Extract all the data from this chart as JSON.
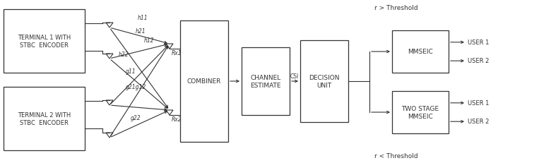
{
  "bg_color": "#ffffff",
  "line_color": "#333333",
  "text_color": "#333333",
  "terminal1_text": "TERMINAL 1 WITH\nSTBC  ENCODER",
  "terminal2_text": "TERMINAL 2 WITH\nSTBC  ENCODER",
  "combiner_text": "COMBINER",
  "channel_text": "CHANNEL\nESTIMATE",
  "decision_text": "DECISION\nUNIT",
  "mmseic_text": "MMSEIC",
  "twostage_text": "TWO STAGE\nMMSEIC",
  "r_above": "r > Threshold",
  "r_below": "r < Threshold",
  "user1_top": "USER 1",
  "user2_top": "USER 2",
  "user1_bot": "USER 1",
  "user2_bot": "USER 2",
  "csi_label": "CSI",
  "rx1_label": "Rx1",
  "rx2_label": "Rx2",
  "h11_label": "h11",
  "h21_label": "h21",
  "h12_label": "h12",
  "h22_label": "h22",
  "g11_label": "g11",
  "g21g12_label": "g21g12",
  "g22_label": "g22"
}
